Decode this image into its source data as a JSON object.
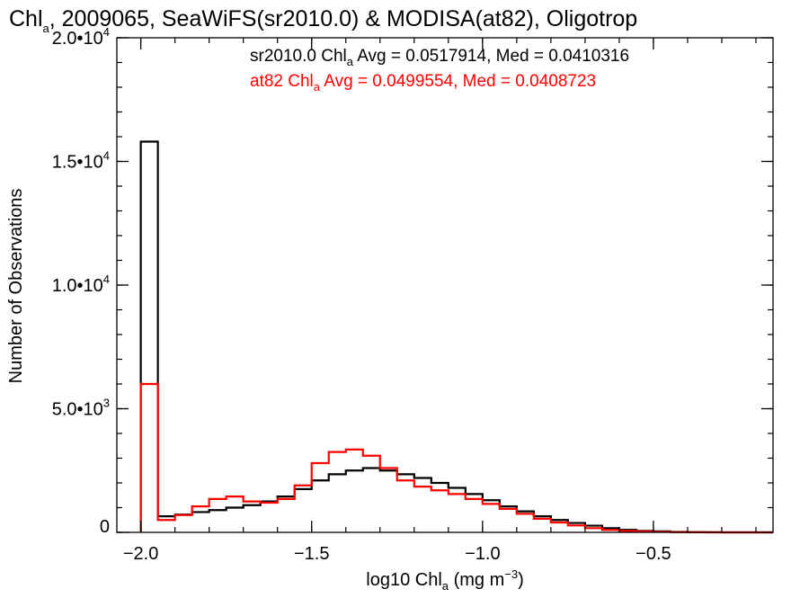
{
  "chart_data": {
    "type": "line",
    "step": true,
    "title": {
      "prefix": "Chl",
      "sub": "a",
      "rest": ", 2009065, SeaWiFS(sr2010.0) & MODISA(at82), Oligotrop"
    },
    "xlabel": {
      "prefix": "log10 Chl",
      "sub": "a",
      "mid": " (mg m",
      "sup": "−3",
      "end": ")"
    },
    "ylabel": "Number of Observations",
    "xlim": [
      -2.07,
      -0.15
    ],
    "ylim": [
      0,
      20000
    ],
    "x_ticks": [
      {
        "value": -2.0,
        "label": "−2.0"
      },
      {
        "value": -1.5,
        "label": "−1.5"
      },
      {
        "value": -1.0,
        "label": "−1.0"
      },
      {
        "value": -0.5,
        "label": "−0.5"
      }
    ],
    "x_minor_step": 0.1,
    "y_ticks": [
      {
        "value": 0,
        "mant": "0",
        "exp": ""
      },
      {
        "value": 5000,
        "mant": "5.0•10",
        "exp": "3"
      },
      {
        "value": 10000,
        "mant": "1.0•10",
        "exp": "4"
      },
      {
        "value": 15000,
        "mant": "1.5•10",
        "exp": "4"
      },
      {
        "value": 20000,
        "mant": "2.0•10",
        "exp": "4"
      }
    ],
    "y_minor_step": 1000,
    "annotations": [
      {
        "color": "#000000",
        "prefix": "sr2010.0 Chl",
        "sub": "a",
        "rest": " Avg = 0.0517914, Med = 0.0410316"
      },
      {
        "color": "#ff0000",
        "prefix": "at82 Chl",
        "sub": "a",
        "rest": " Avg = 0.0499554, Med = 0.0408723"
      }
    ],
    "series": [
      {
        "color": "#000000",
        "x": [
          -2.0,
          -1.95,
          -1.9,
          -1.85,
          -1.8,
          -1.75,
          -1.7,
          -1.65,
          -1.6,
          -1.55,
          -1.5,
          -1.45,
          -1.4,
          -1.35,
          -1.3,
          -1.25,
          -1.2,
          -1.15,
          -1.1,
          -1.05,
          -1.0,
          -0.95,
          -0.9,
          -0.85,
          -0.8,
          -0.75,
          -0.7,
          -0.65,
          -0.6,
          -0.55,
          -0.5,
          -0.45,
          -0.4,
          -0.35,
          -0.3,
          -0.25,
          -0.2
        ],
        "y": [
          15800,
          650,
          720,
          820,
          900,
          1000,
          1100,
          1250,
          1450,
          1750,
          2100,
          2350,
          2500,
          2600,
          2500,
          2350,
          2200,
          2000,
          1800,
          1550,
          1300,
          1050,
          850,
          650,
          500,
          380,
          270,
          170,
          100,
          60,
          40,
          20,
          10,
          5,
          0,
          0,
          0
        ]
      },
      {
        "color": "#ff0000",
        "x": [
          -2.0,
          -1.95,
          -1.9,
          -1.85,
          -1.8,
          -1.75,
          -1.7,
          -1.65,
          -1.6,
          -1.55,
          -1.5,
          -1.45,
          -1.4,
          -1.35,
          -1.3,
          -1.25,
          -1.2,
          -1.15,
          -1.1,
          -1.05,
          -1.0,
          -0.95,
          -0.9,
          -0.85,
          -0.8,
          -0.75,
          -0.7,
          -0.65,
          -0.6,
          -0.55,
          -0.5,
          -0.45,
          -0.4,
          -0.35,
          -0.3,
          -0.25,
          -0.2
        ],
        "y": [
          6000,
          500,
          700,
          1050,
          1350,
          1450,
          1250,
          1200,
          1350,
          1900,
          2800,
          3250,
          3350,
          3100,
          2600,
          2100,
          1850,
          1700,
          1550,
          1350,
          1150,
          950,
          750,
          550,
          400,
          280,
          170,
          100,
          60,
          40,
          20,
          10,
          5,
          0,
          0,
          0,
          0
        ]
      }
    ]
  }
}
